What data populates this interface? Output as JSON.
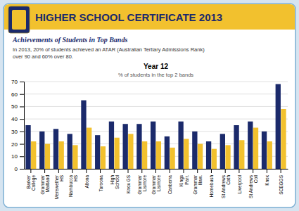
{
  "chart_data": {
    "type": "bar",
    "title": "Year 12",
    "subtitle": "% of students in the top 2 bands",
    "annotations": [
      "HIGHER SCHOOL CERTIFICATE 2013",
      "Achievements of Students in Top Bands",
      "In 2013, 20% of students achieved an ATAR (Australian Tertiary Admissions Rank)\nover 90 and 60% over 80."
    ],
    "categories": [
      "Barker\nCollege",
      "Grammar\nMaitland",
      "Merewether\nHS",
      "Nambucca\nHS",
      "Altona",
      "Taroona",
      "High\nSchool",
      "Knox GS",
      "Grammar\nLismore",
      "Grammar\nLismore",
      "Canberra",
      "Kings\nParr.",
      "Grammar\nIllaw.",
      "Homebush",
      "St Andrews\nCath",
      "Liverpool",
      "St Andrews\nColl",
      "Knox",
      "SCEGGS"
    ],
    "series": [
      {
        "color": "#1B2A6B",
        "values": [
          35,
          30,
          32,
          28,
          55,
          27,
          38,
          36,
          36,
          38,
          26,
          38,
          30,
          22,
          28,
          35,
          38,
          30,
          68
        ]
      },
      {
        "color": "#F2C12E",
        "values": [
          22,
          20,
          22,
          19,
          33,
          18,
          25,
          28,
          22,
          22,
          17,
          24,
          20,
          16,
          19,
          23,
          33,
          22,
          48
        ]
      }
    ],
    "ylim": [
      0,
      70
    ],
    "yticks": [
      0,
      10,
      20,
      30,
      40,
      50,
      60,
      70
    ],
    "grid": true
  }
}
